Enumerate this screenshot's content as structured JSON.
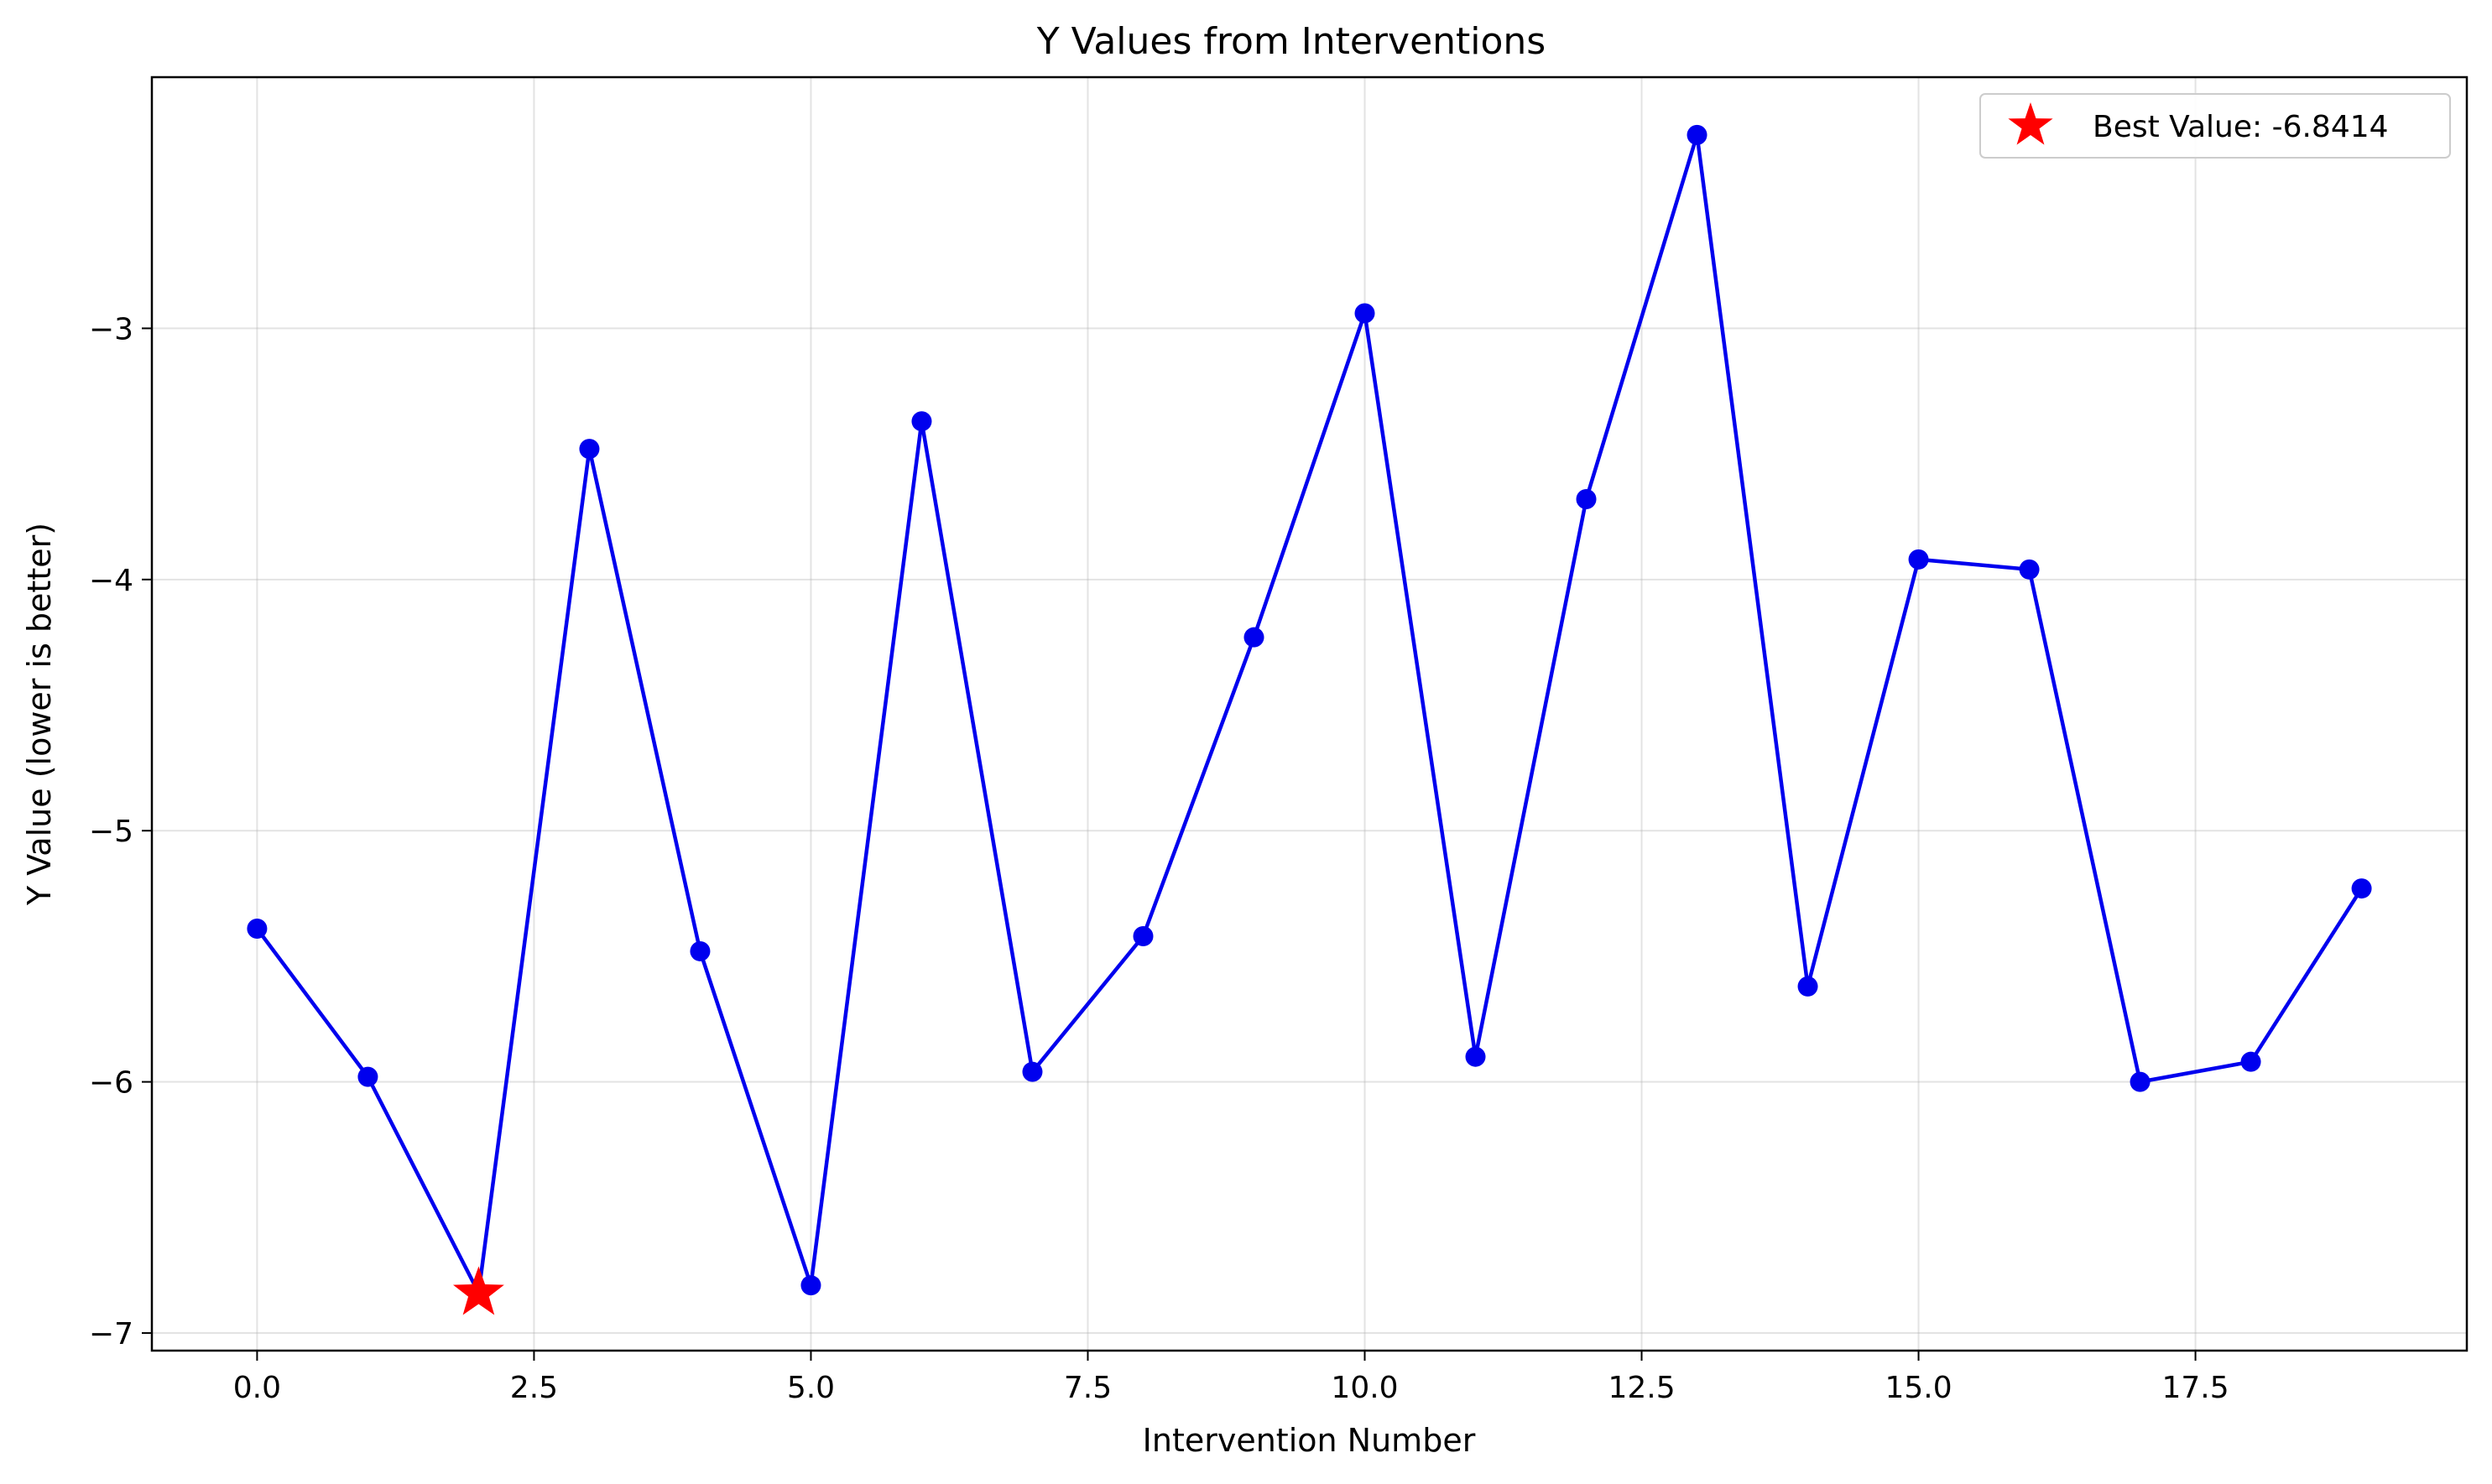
{
  "chart_data": {
    "type": "line",
    "title": "Y Values from Interventions",
    "xlabel": "Intervention Number",
    "ylabel": "Y Value (lower is better)",
    "x": [
      0,
      1,
      2,
      3,
      4,
      5,
      6,
      7,
      8,
      9,
      10,
      11,
      12,
      13,
      14,
      15,
      16,
      17,
      18,
      19
    ],
    "series": [
      {
        "values": [
          -5.39,
          -5.98,
          -6.84,
          -3.48,
          -5.48,
          -6.81,
          -3.37,
          -5.96,
          -5.42,
          -4.23,
          -2.94,
          -5.9,
          -3.68,
          -2.23,
          -5.62,
          -3.92,
          -3.96,
          -6.0,
          -5.92,
          -5.23
        ],
        "color": "#0000ee"
      }
    ],
    "best": {
      "x": 2,
      "y": -6.8414,
      "label": "Best Value: -6.8414",
      "color": "#ff0000"
    },
    "xlim": [
      -0.95,
      19.95
    ],
    "ylim": [
      -7.07,
      -2.0
    ],
    "xticks": [
      0.0,
      2.5,
      5.0,
      7.5,
      10.0,
      12.5,
      15.0,
      17.5
    ],
    "xtick_labels": [
      "0.0",
      "2.5",
      "5.0",
      "7.5",
      "10.0",
      "12.5",
      "15.0",
      "17.5"
    ],
    "yticks": [
      -7,
      -6,
      -5,
      -4,
      -3
    ],
    "ytick_labels": [
      "−7",
      "−6",
      "−5",
      "−4",
      "−3"
    ],
    "grid": true,
    "legend": "top-right"
  }
}
